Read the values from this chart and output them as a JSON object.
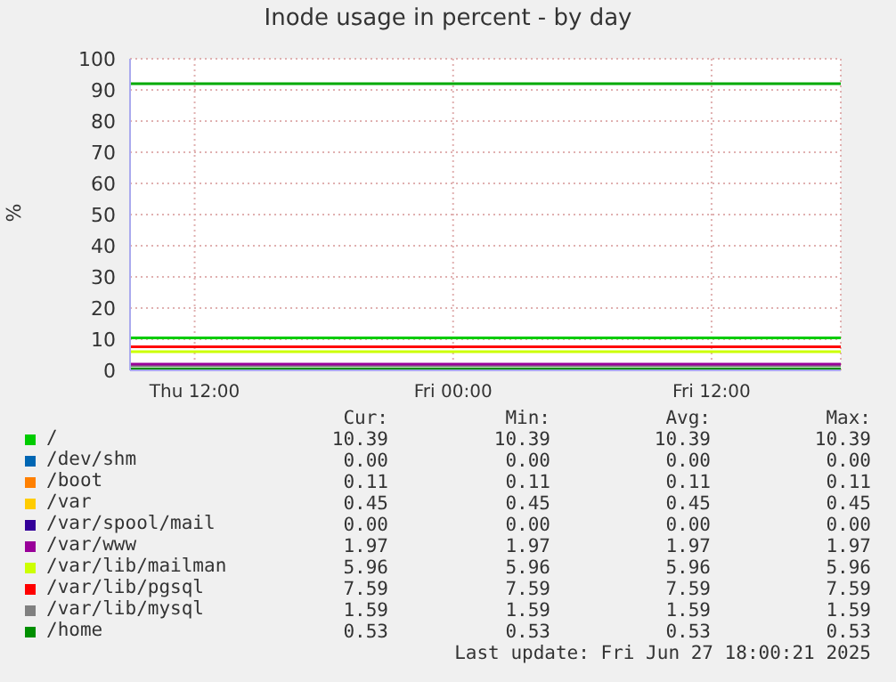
{
  "chart_data": {
    "type": "line",
    "title": "Inode usage in percent - by day",
    "ylabel": "%",
    "x": [
      "2025-06-26T09:00",
      "2025-06-27T18:00"
    ],
    "xlim": [
      "2025-06-26T09:00",
      "2025-06-27T18:00"
    ],
    "xticks": [
      {
        "value": "2025-06-26T12:00",
        "label": "Thu 12:00"
      },
      {
        "value": "2025-06-27T00:00",
        "label": "Fri 00:00"
      },
      {
        "value": "2025-06-27T12:00",
        "label": "Fri 12:00"
      }
    ],
    "ylim": [
      0,
      100
    ],
    "yticks": [
      0,
      10,
      20,
      30,
      40,
      50,
      60,
      70,
      80,
      90,
      100
    ],
    "grid": true,
    "legend": "bottom",
    "line_style": "solid",
    "ref_lines": [
      {
        "axis": "y",
        "value": 92,
        "color": "#00aa00"
      }
    ],
    "series": [
      {
        "name": "/",
        "color": "#00cc00",
        "values": [
          10.4,
          10.4
        ]
      },
      {
        "name": "/dev/shm",
        "color": "#0066b3",
        "values": [
          null,
          null
        ]
      },
      {
        "name": "/boot",
        "color": "#ff8000",
        "values": [
          null,
          null
        ]
      },
      {
        "name": "/var",
        "color": "#ffcc00",
        "values": [
          null,
          null
        ]
      },
      {
        "name": "/var/spool/mail",
        "color": "#330099",
        "values": [
          null,
          null
        ]
      },
      {
        "name": "/var/www",
        "color": "#990099",
        "values": [
          2,
          2
        ]
      },
      {
        "name": "/var/lib/mailman",
        "color": "#ccff00",
        "values": [
          6,
          6
        ]
      },
      {
        "name": "/var/lib/pgsql",
        "color": "#ff0000",
        "values": [
          7.6,
          7.6
        ]
      },
      {
        "name": "/var/lib/mysql",
        "color": "#808080",
        "values": [
          1.6,
          1.6
        ]
      },
      {
        "name": "/home",
        "color": "#008f00",
        "values": [
          0.5,
          0.5
        ]
      }
    ],
    "annotations": [
      "Cur:",
      "Min:",
      "Avg:",
      "Max:",
      "10.39",
      "10.39",
      "10.39",
      "10.39",
      "0.00",
      "0.00",
      "0.00",
      "0.00",
      "0.11",
      "0.11",
      "0.11",
      "0.11",
      "0.45",
      "0.45",
      "0.45",
      "0.45",
      "0.00",
      "0.00",
      "0.00",
      "0.00",
      "1.97",
      "1.97",
      "1.97",
      "1.97",
      "5.96",
      "5.96",
      "5.96",
      "5.96",
      "7.59",
      "7.59",
      "7.59",
      "7.59",
      "1.59",
      "1.59",
      "1.59",
      "1.59",
      "0.53",
      "0.53",
      "0.53",
      "0.53",
      "Last update: Fri Jun 27 18:00:21 2025"
    ]
  }
}
